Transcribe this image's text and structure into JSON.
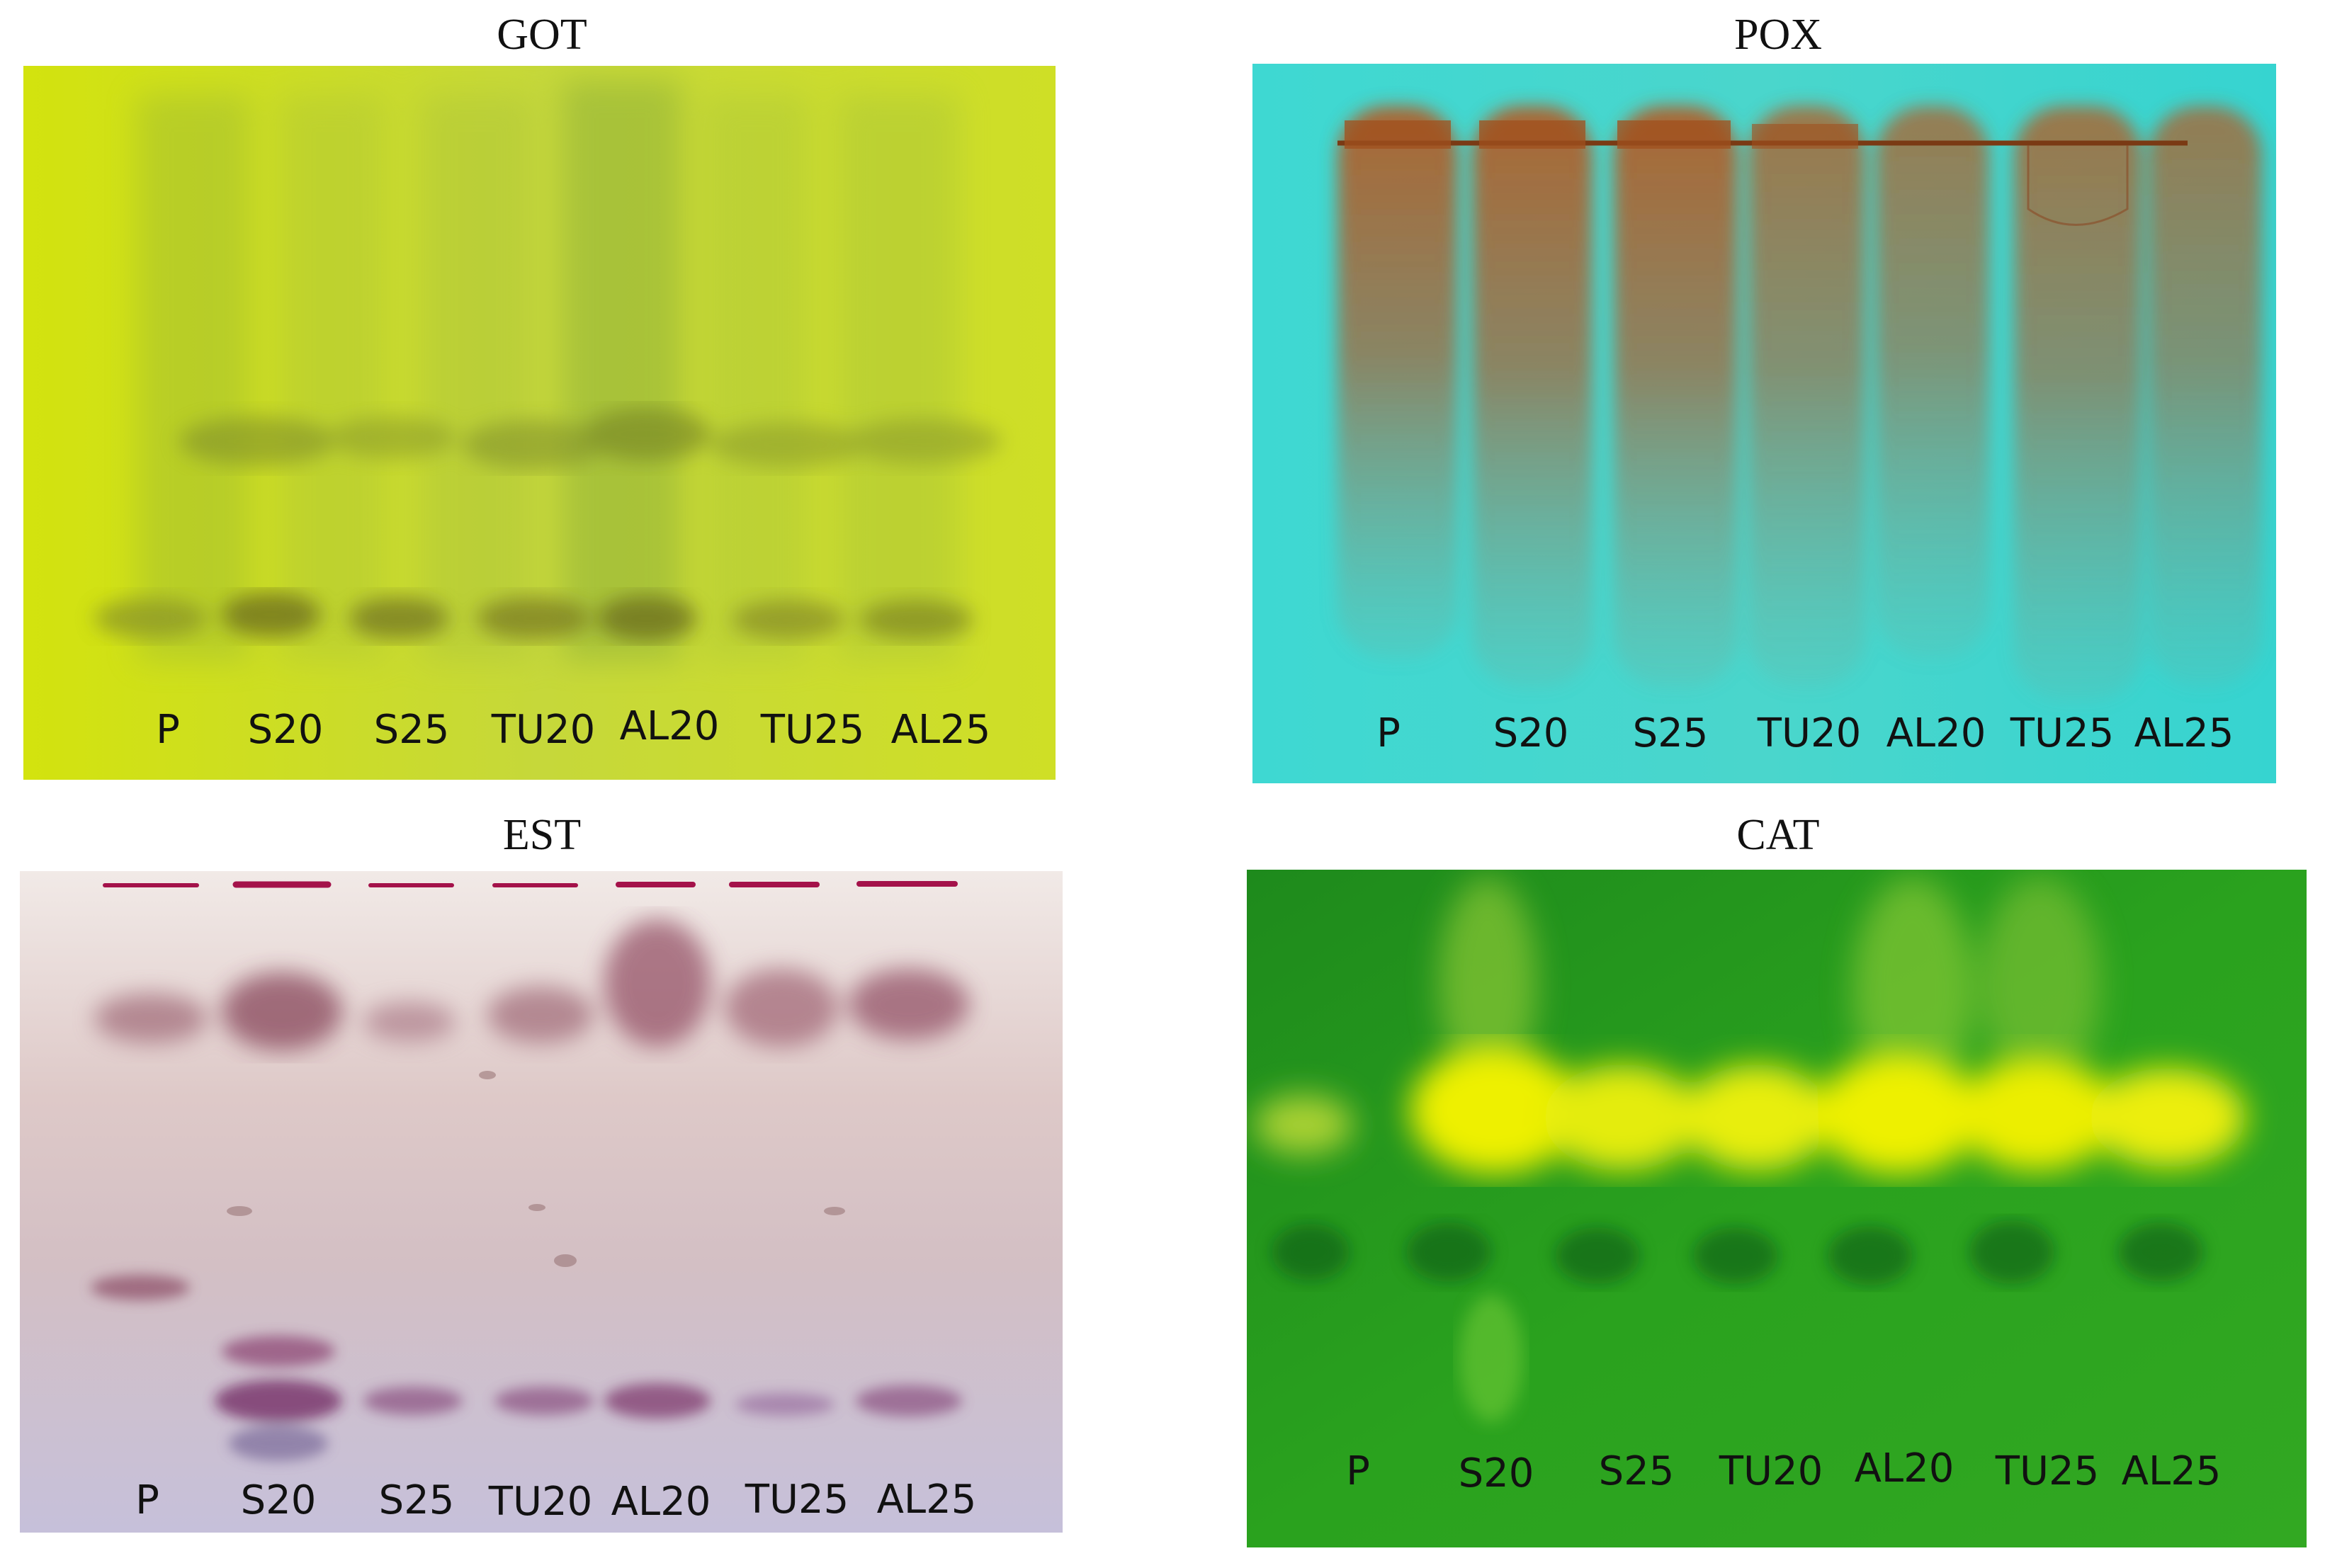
{
  "panels": [
    {
      "id": "got",
      "title": "GOT",
      "lanes": [
        "P",
        "S20",
        "S25",
        "TU20",
        "AL20",
        "TU25",
        "AL25"
      ],
      "colors": {
        "background": "#cfdf1a"
      }
    },
    {
      "id": "pox",
      "title": "POX",
      "lanes": [
        "P",
        "S20",
        "S25",
        "TU20",
        "AL20",
        "TU25",
        "AL25"
      ],
      "colors": {
        "background": "#3fd6d0"
      }
    },
    {
      "id": "est",
      "title": "EST",
      "lanes": [
        "P",
        "S20",
        "S25",
        "TU20",
        "AL20",
        "TU25",
        "AL25"
      ],
      "colors": {
        "background": "#d9c8cc"
      }
    },
    {
      "id": "cat",
      "title": "CAT",
      "lanes": [
        "P",
        "S20",
        "S25",
        "TU20",
        "AL20",
        "TU25",
        "AL25"
      ],
      "colors": {
        "background": "#2a9a1c"
      }
    }
  ]
}
